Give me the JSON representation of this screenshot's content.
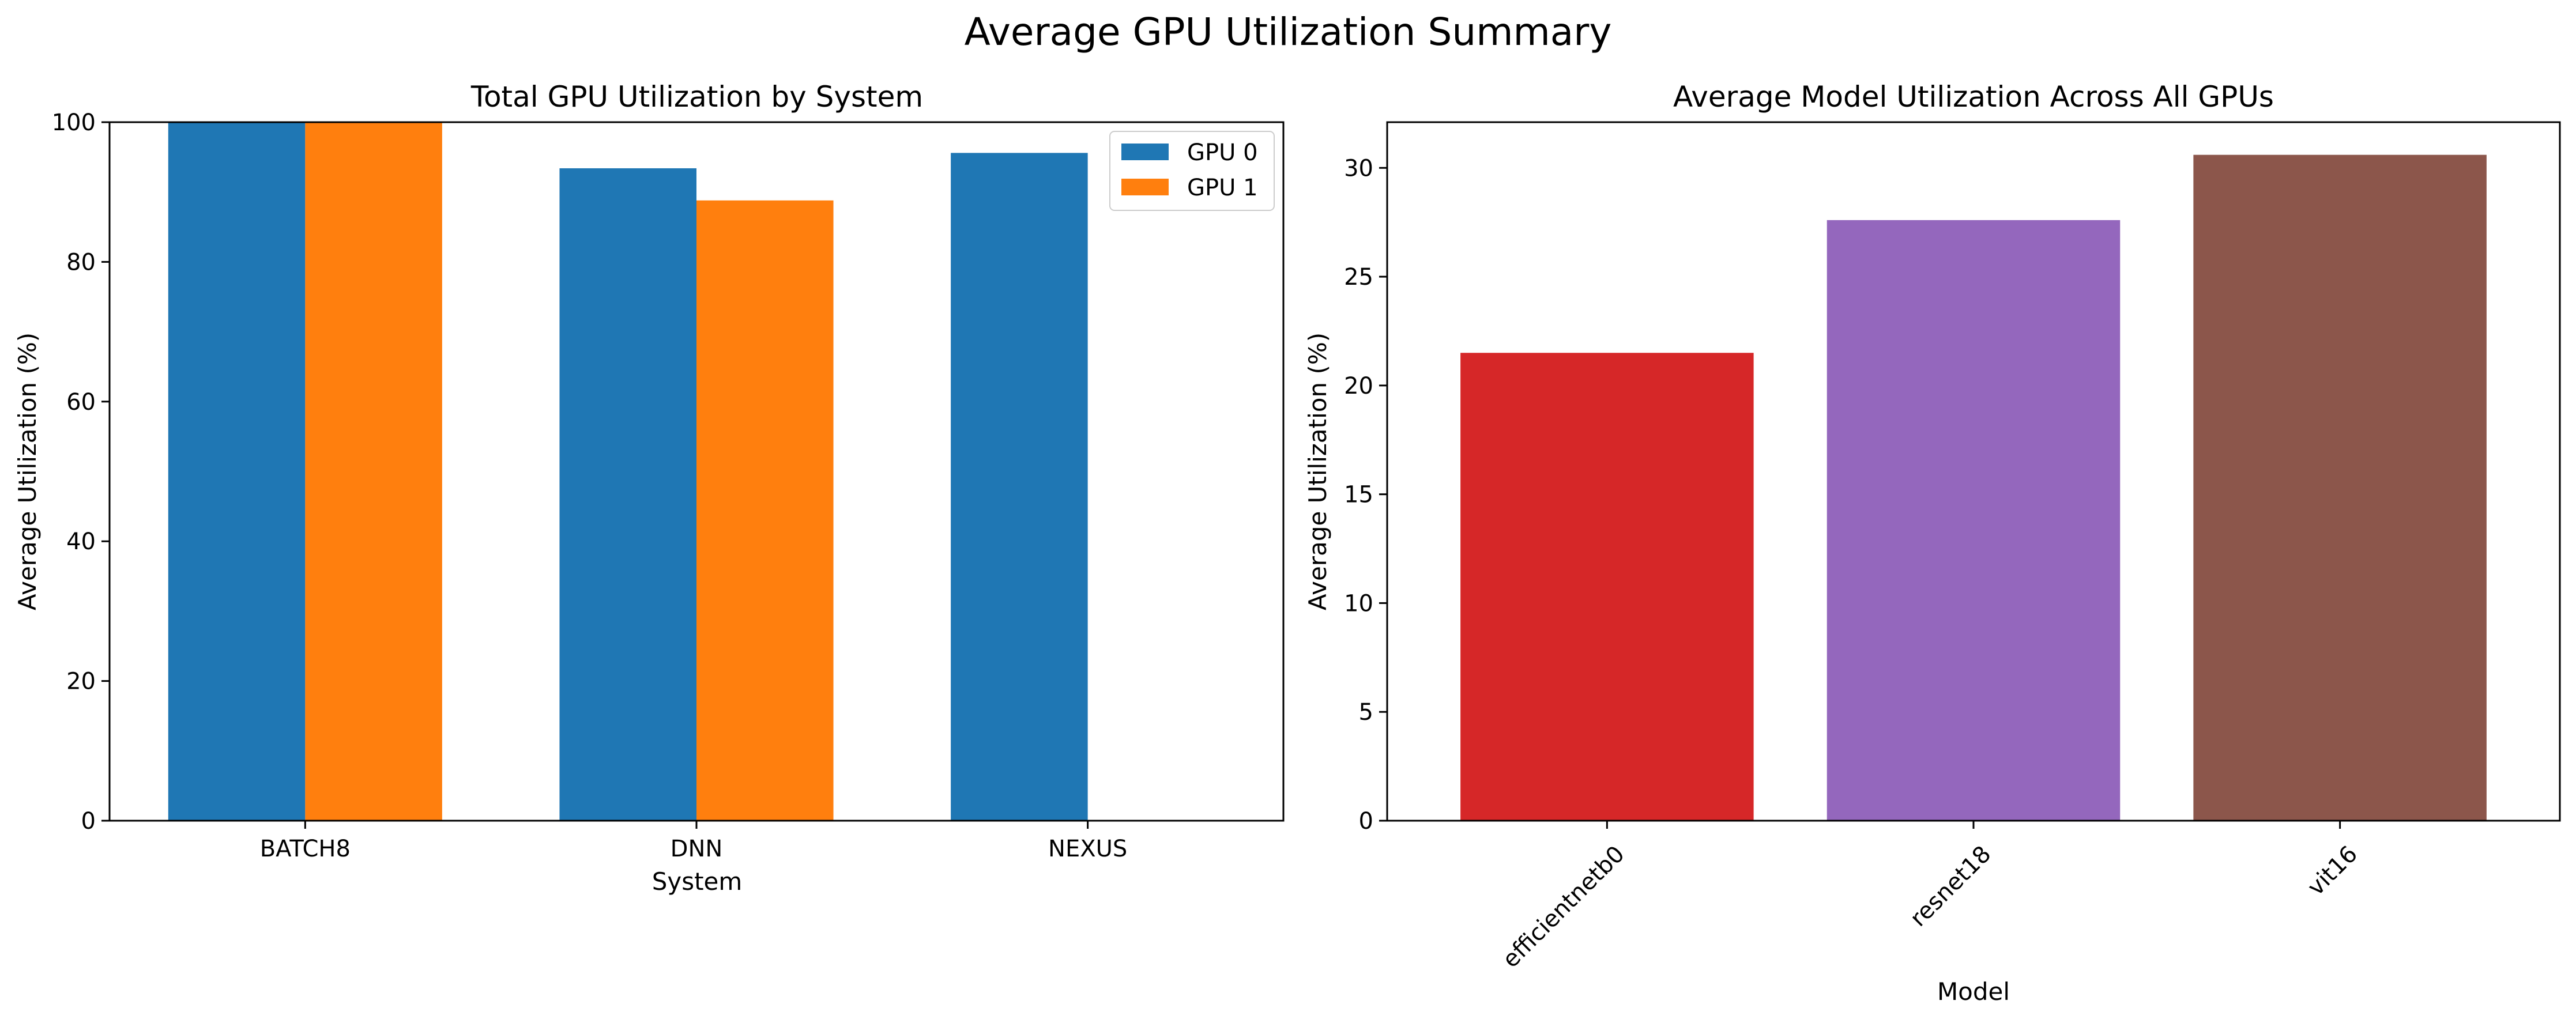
{
  "figure": {
    "title": "Average GPU Utilization Summary"
  },
  "chart_data": [
    {
      "type": "bar",
      "title": "Total GPU Utilization by System",
      "xlabel": "System",
      "ylabel": "Average Utilization (%)",
      "categories": [
        "BATCH8",
        "DNN",
        "NEXUS"
      ],
      "series": [
        {
          "name": "GPU 0",
          "values": [
            100.0,
            93.4,
            95.6
          ],
          "color": "#1f77b4"
        },
        {
          "name": "GPU 1",
          "values": [
            100.0,
            88.8,
            null
          ],
          "color": "#ff7f0e"
        }
      ],
      "ylim": [
        0,
        100
      ],
      "yticks": [
        0,
        20,
        40,
        60,
        80,
        100
      ],
      "grid": false,
      "legend": "top-right"
    },
    {
      "type": "bar",
      "title": "Average Model Utilization Across All GPUs",
      "xlabel": "Model",
      "ylabel": "Average Utilization (%)",
      "categories": [
        "efficientnetb0",
        "resnet18",
        "vit16"
      ],
      "values": [
        21.5,
        27.6,
        30.6
      ],
      "colors": [
        "#d62728",
        "#9467bd",
        "#8c564b"
      ],
      "ylim": [
        0,
        32.1
      ],
      "yticks": [
        0,
        5,
        10,
        15,
        20,
        25,
        30
      ],
      "grid": false,
      "xtick_rotation": 45
    }
  ]
}
